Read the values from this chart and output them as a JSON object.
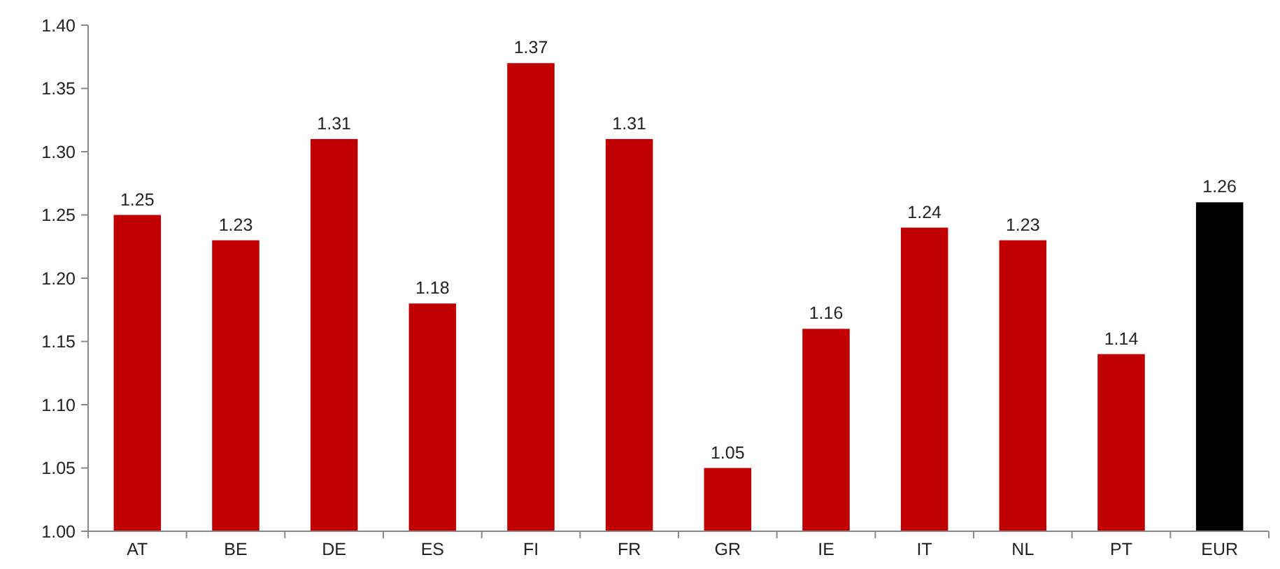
{
  "chart_data": {
    "type": "bar",
    "categories": [
      "AT",
      "BE",
      "DE",
      "ES",
      "FI",
      "FR",
      "GR",
      "IE",
      "IT",
      "NL",
      "PT",
      "EUR"
    ],
    "values": [
      1.25,
      1.23,
      1.31,
      1.18,
      1.37,
      1.31,
      1.05,
      1.16,
      1.24,
      1.23,
      1.14,
      1.26
    ],
    "colors": [
      "#c00000",
      "#c00000",
      "#c00000",
      "#c00000",
      "#c00000",
      "#c00000",
      "#c00000",
      "#c00000",
      "#c00000",
      "#c00000",
      "#c00000",
      "#000000"
    ],
    "ylim": [
      1.0,
      1.4
    ],
    "yticks": [
      {
        "value": 1.0,
        "label": "1.00"
      },
      {
        "value": 1.05,
        "label": "1.05"
      },
      {
        "value": 1.1,
        "label": "1.10"
      },
      {
        "value": 1.15,
        "label": "1.15"
      },
      {
        "value": 1.2,
        "label": "1.20"
      },
      {
        "value": 1.25,
        "label": "1.25"
      },
      {
        "value": 1.3,
        "label": "1.30"
      },
      {
        "value": 1.35,
        "label": "1.35"
      },
      {
        "value": 1.4,
        "label": "1.40"
      }
    ],
    "data_labels": true,
    "grid": false
  }
}
